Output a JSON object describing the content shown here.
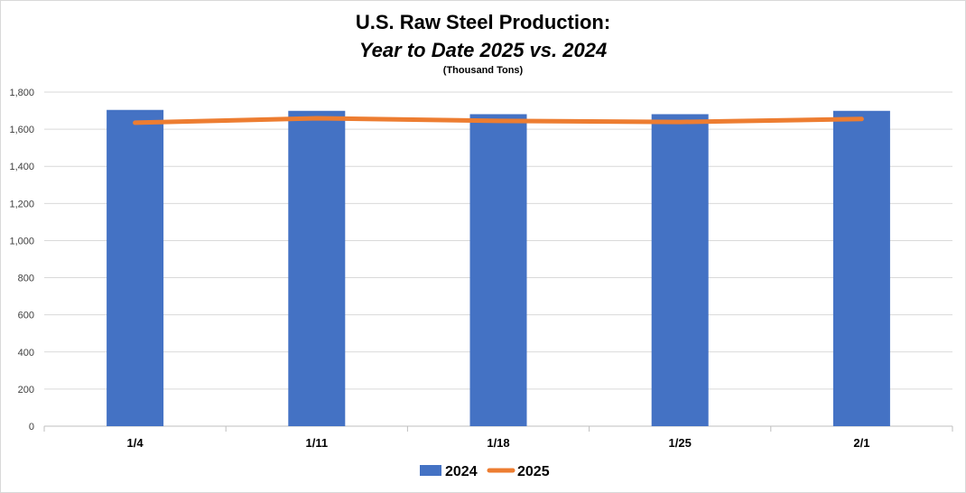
{
  "chart_data": {
    "type": "bar",
    "title": "U.S. Raw Steel Production:",
    "subtitle_italic": "Year to Date 2025 vs. 2024",
    "units_note": "(Thousand Tons)",
    "xlabel": "",
    "ylabel": "",
    "categories": [
      "1/4",
      "1/11",
      "1/18",
      "1/25",
      "2/1"
    ],
    "series": [
      {
        "name": "2024",
        "type": "bar",
        "color": "#4472C4",
        "values": [
          1704,
          1699,
          1681,
          1681,
          1699
        ]
      },
      {
        "name": "2025",
        "type": "line",
        "color": "#ED7D31",
        "values": [
          1635,
          1659,
          1645,
          1639,
          1655
        ]
      }
    ],
    "ylim": [
      0,
      1800
    ],
    "yticks": [
      "0",
      "200",
      "400",
      "600",
      "800",
      "1,000",
      "1,200",
      "1,400",
      "1,600",
      "1,800"
    ],
    "grid": true,
    "legend": "bottom-center"
  }
}
